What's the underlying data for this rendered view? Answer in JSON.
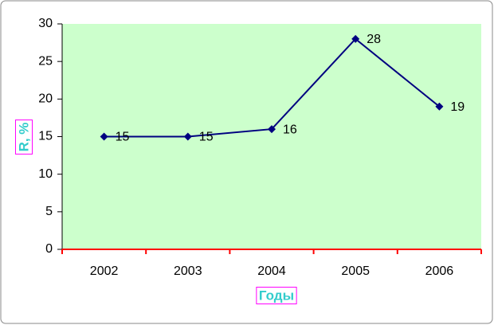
{
  "chart_data": {
    "type": "line",
    "x_label": "Годы",
    "y_label": "R, %",
    "categories": [
      "2002",
      "2003",
      "2004",
      "2005",
      "2006"
    ],
    "series": [
      {
        "name": "R",
        "color": "#000080",
        "values": [
          15,
          15,
          16,
          28,
          19
        ]
      }
    ],
    "ylim": [
      0,
      30
    ],
    "yticks": [
      0,
      5,
      10,
      15,
      20,
      25,
      30
    ],
    "plot_background": "#ccffcc",
    "x_axis_color": "#ff0000",
    "axis_label_color": "#33cccc",
    "axis_label_border": "#ff00ff"
  }
}
